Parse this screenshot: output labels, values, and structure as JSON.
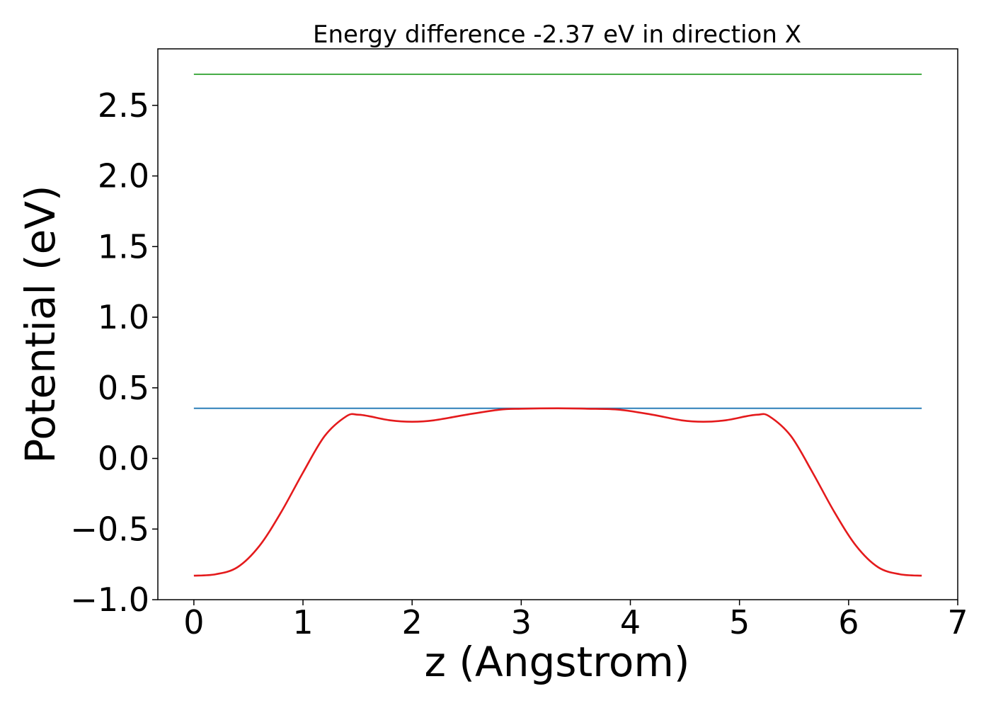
{
  "chart_data": {
    "type": "line",
    "title": "Energy difference -2.37 eV in direction X",
    "xlabel": "z (Angstrom)",
    "ylabel": "Potential (eV)",
    "xlim": [
      -0.33,
      7.0
    ],
    "ylim": [
      -1.0,
      2.9
    ],
    "grid": false,
    "legend": "none",
    "x_ticks": [
      0,
      1,
      2,
      3,
      4,
      5,
      6,
      7
    ],
    "x_tick_labels": [
      "0",
      "1",
      "2",
      "3",
      "4",
      "5",
      "6",
      "7"
    ],
    "y_ticks": [
      -1.0,
      -0.5,
      0.0,
      0.5,
      1.0,
      1.5,
      2.0,
      2.5
    ],
    "y_tick_labels": [
      "−1.0",
      "−0.5",
      "0.0",
      "0.5",
      "1.0",
      "1.5",
      "2.0",
      "2.5"
    ],
    "series": [
      {
        "color": "#2ca02c",
        "x": [
          0,
          6.67
        ],
        "y": [
          2.72,
          2.72
        ]
      },
      {
        "color": "#1f77b4",
        "x": [
          0,
          6.67
        ],
        "y": [
          0.355,
          0.355
        ]
      },
      {
        "color": "#e41a1c",
        "x": [
          0,
          0.2,
          0.4,
          0.6,
          0.8,
          1.0,
          1.2,
          1.4,
          1.5,
          1.6,
          1.8,
          2.0,
          2.2,
          2.5,
          2.8,
          3.0,
          3.335,
          3.6,
          3.9,
          4.2,
          4.47,
          4.67,
          4.87,
          5.07,
          5.17,
          5.27,
          5.47,
          5.67,
          5.87,
          6.07,
          6.27,
          6.47,
          6.67
        ],
        "y": [
          -0.83,
          -0.82,
          -0.77,
          -0.62,
          -0.38,
          -0.1,
          0.16,
          0.3,
          0.31,
          0.3,
          0.27,
          0.26,
          0.27,
          0.31,
          0.345,
          0.352,
          0.355,
          0.352,
          0.345,
          0.31,
          0.27,
          0.26,
          0.27,
          0.3,
          0.31,
          0.3,
          0.16,
          -0.1,
          -0.38,
          -0.62,
          -0.77,
          -0.82,
          -0.83
        ]
      }
    ]
  }
}
